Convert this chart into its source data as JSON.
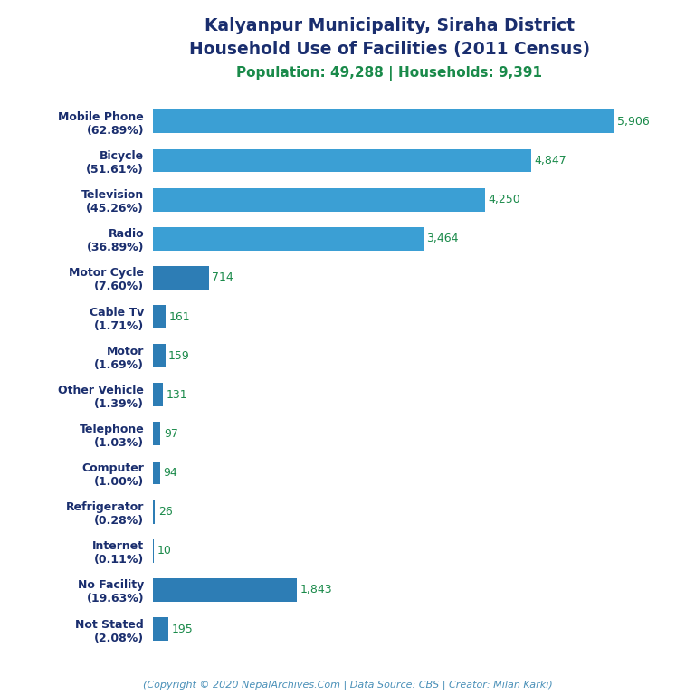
{
  "title_line1": "Kalyanpur Municipality, Siraha District",
  "title_line2": "Household Use of Facilities (2011 Census)",
  "subtitle": "Population: 49,288 | Households: 9,391",
  "footer": "(Copyright © 2020 NepalArchives.Com | Data Source: CBS | Creator: Milan Karki)",
  "categories": [
    "Mobile Phone\n(62.89%)",
    "Bicycle\n(51.61%)",
    "Television\n(45.26%)",
    "Radio\n(36.89%)",
    "Motor Cycle\n(7.60%)",
    "Cable Tv\n(1.71%)",
    "Motor\n(1.69%)",
    "Other Vehicle\n(1.39%)",
    "Telephone\n(1.03%)",
    "Computer\n(1.00%)",
    "Refrigerator\n(0.28%)",
    "Internet\n(0.11%)",
    "No Facility\n(19.63%)",
    "Not Stated\n(2.08%)"
  ],
  "values": [
    5906,
    4847,
    4250,
    3464,
    714,
    161,
    159,
    131,
    97,
    94,
    26,
    10,
    1843,
    195
  ],
  "value_labels": [
    "5,906",
    "4,847",
    "4,250",
    "3,464",
    "714",
    "161",
    "159",
    "131",
    "97",
    "94",
    "26",
    "10",
    "1,843",
    "195"
  ],
  "bar_colors": [
    "#3b9fd4",
    "#3b9fd4",
    "#3b9fd4",
    "#3b9fd4",
    "#2d7db5",
    "#2d7db5",
    "#2d7db5",
    "#2d7db5",
    "#2d7db5",
    "#2d7db5",
    "#2d7db5",
    "#2d7db5",
    "#2d7db5",
    "#2d7db5"
  ],
  "title_color": "#1a2e6e",
  "subtitle_color": "#1a8a4a",
  "footer_color": "#4a90b8",
  "value_color": "#1a8a4a",
  "ylabel_color": "#1a2e6e",
  "background_color": "#ffffff",
  "xlim": [
    0,
    6500
  ]
}
